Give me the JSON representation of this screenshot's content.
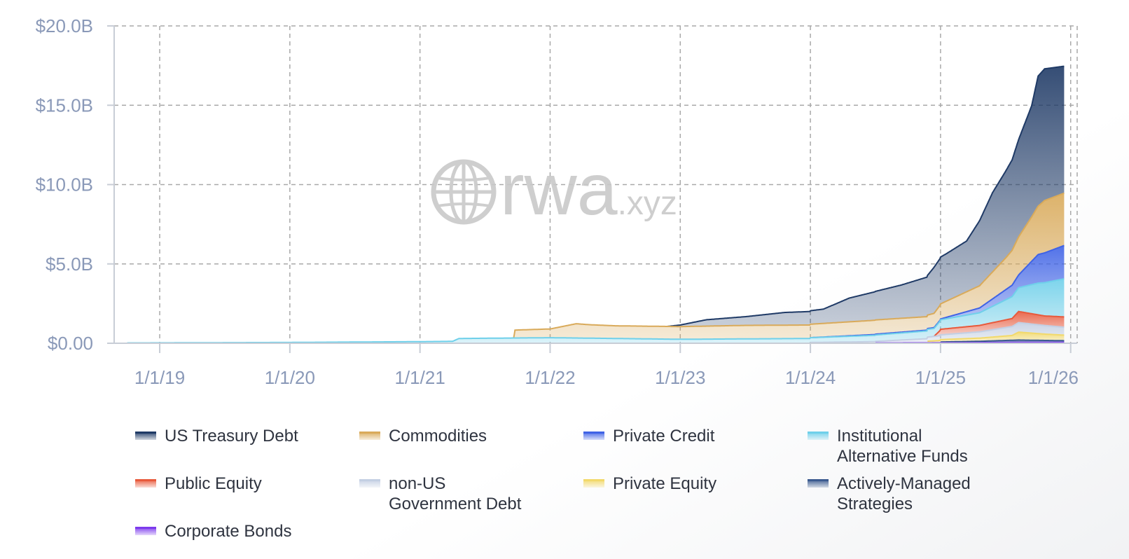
{
  "chart_data": {
    "type": "area",
    "stacked": true,
    "y_axis": {
      "ticks": [
        "$0.00",
        "$5.0B",
        "$10.0B",
        "$15.0B",
        "$20.0B"
      ],
      "tick_values": [
        0,
        5,
        10,
        15,
        20
      ],
      "unit": "billions USD",
      "ylim": [
        0,
        20
      ]
    },
    "x_axis": {
      "ticks": [
        "1/1/19",
        "1/1/20",
        "1/1/21",
        "1/1/22",
        "1/1/23",
        "1/1/24",
        "1/1/25",
        "1/1/26"
      ],
      "tick_values": [
        2019.0,
        2020.0,
        2021.0,
        2022.0,
        2023.0,
        2024.0,
        2025.0,
        2026.0
      ],
      "xlim": [
        2018.65,
        2026.05
      ]
    },
    "grid": true,
    "legend_position": "bottom",
    "watermark": "rwa.xyz",
    "series": [
      {
        "name": "Corporate Bonds",
        "color": "#7c3aed",
        "x": [
          2024.5,
          2025.0,
          2025.5,
          2025.95
        ],
        "y": [
          0.02,
          0.03,
          0.05,
          0.06
        ]
      },
      {
        "name": "Actively-Managed Strategies",
        "color": "#3b5b8f",
        "x": [
          2025.0,
          2025.3,
          2025.6,
          2025.95
        ],
        "y": [
          0.05,
          0.08,
          0.15,
          0.1
        ]
      },
      {
        "name": "Private Equity",
        "color": "#f2d96b",
        "x": [
          2024.9,
          2025.0,
          2025.3,
          2025.55,
          2025.6,
          2025.8,
          2025.95
        ],
        "y": [
          0.1,
          0.15,
          0.2,
          0.3,
          0.5,
          0.4,
          0.35
        ]
      },
      {
        "name": "non-US Government Debt",
        "color": "#c3cfe3",
        "x": [
          2024.0,
          2024.5,
          2025.0,
          2025.3,
          2025.6,
          2025.95
        ],
        "y": [
          0.05,
          0.1,
          0.3,
          0.4,
          0.6,
          0.5
        ]
      },
      {
        "name": "Public Equity",
        "color": "#e8593b",
        "x": [
          2024.95,
          2025.0,
          2025.3,
          2025.55,
          2025.6,
          2025.8,
          2025.95
        ],
        "y": [
          0.0,
          0.35,
          0.4,
          0.5,
          0.7,
          0.6,
          0.65
        ]
      },
      {
        "name": "Institutional Alternative Funds",
        "color": "#6fd0ea",
        "x": [
          2018.75,
          2020.0,
          2021.0,
          2021.25,
          2021.3,
          2022.0,
          2022.5,
          2023.0,
          2024.0,
          2024.5,
          2024.95,
          2025.0,
          2025.3,
          2025.6,
          2025.75,
          2025.95
        ],
        "y": [
          0.02,
          0.05,
          0.1,
          0.12,
          0.3,
          0.35,
          0.3,
          0.25,
          0.3,
          0.4,
          0.5,
          0.6,
          0.8,
          1.5,
          2.0,
          2.4
        ]
      },
      {
        "name": "Private Credit",
        "color": "#3f63e6",
        "x": [
          2024.0,
          2024.5,
          2024.95,
          2025.0,
          2025.3,
          2025.6,
          2025.75,
          2025.95
        ],
        "y": [
          0.0,
          0.05,
          0.05,
          0.05,
          0.3,
          0.8,
          1.8,
          2.1
        ]
      },
      {
        "name": "Commodities",
        "color": "#d9aa5a",
        "x": [
          2021.72,
          2021.73,
          2022.0,
          2022.2,
          2022.3,
          2022.5,
          2023.0,
          2023.5,
          2024.0,
          2024.5,
          2024.9,
          2025.0,
          2025.3,
          2025.5,
          2025.7,
          2025.8,
          2025.95
        ],
        "y": [
          0.0,
          0.5,
          0.55,
          0.9,
          0.85,
          0.8,
          0.8,
          0.85,
          0.85,
          0.9,
          0.85,
          0.95,
          1.4,
          2.0,
          2.8,
          3.3,
          3.3
        ]
      },
      {
        "name": "US Treasury Debt",
        "color": "#1f3a66",
        "x": [
          2022.9,
          2023.0,
          2023.2,
          2023.5,
          2023.8,
          2024.0,
          2024.1,
          2024.3,
          2024.5,
          2024.7,
          2024.9,
          2024.95,
          2025.05,
          2025.2,
          2025.4,
          2025.55,
          2025.7,
          2025.75,
          2025.8,
          2025.95
        ],
        "y": [
          0.0,
          0.1,
          0.4,
          0.55,
          0.8,
          0.85,
          0.9,
          1.5,
          1.8,
          2.1,
          2.5,
          2.9,
          3.0,
          3.2,
          5.0,
          5.7,
          7.0,
          8.2,
          8.3,
          8.0
        ]
      }
    ]
  },
  "legend": {
    "items": [
      {
        "label": "US Treasury Debt",
        "color": "#1f3a66"
      },
      {
        "label": "Commodities",
        "color": "#d9aa5a"
      },
      {
        "label": "Private Credit",
        "color": "#3f63e6"
      },
      {
        "label": "Institutional\nAlternative Funds",
        "color": "#6fd0ea"
      },
      {
        "label": "Public Equity",
        "color": "#e8593b"
      },
      {
        "label": "non-US\nGovernment Debt",
        "color": "#c3cfe3"
      },
      {
        "label": "Private Equity",
        "color": "#f2d96b"
      },
      {
        "label": "Actively-Managed\nStrategies",
        "color": "#3b5b8f"
      },
      {
        "label": "Corporate Bonds",
        "color": "#7c3aed"
      }
    ]
  }
}
